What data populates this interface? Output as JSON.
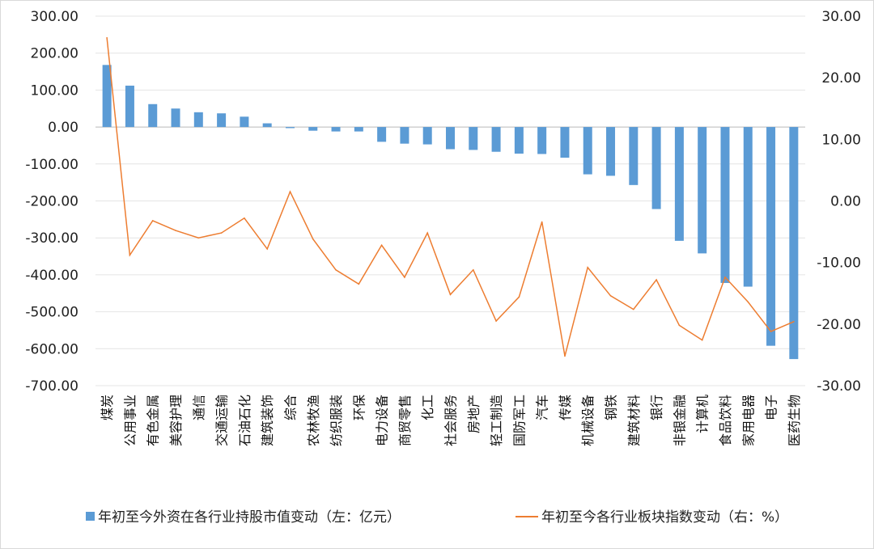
{
  "chart_data": {
    "type": "bar+line",
    "categories": [
      "煤炭",
      "公用事业",
      "有色金属",
      "美容护理",
      "通信",
      "交通运输",
      "石油石化",
      "建筑装饰",
      "综合",
      "农林牧渔",
      "纺织服装",
      "环保",
      "电力设备",
      "商贸零售",
      "化工",
      "社会服务",
      "房地产",
      "轻工制造",
      "国防军工",
      "汽车",
      "传媒",
      "机械设备",
      "钢铁",
      "建筑材料",
      "银行",
      "非银金融",
      "计算机",
      "食品饮料",
      "家用电器",
      "电子",
      "医药生物"
    ],
    "series": [
      {
        "name": "年初至今外资在各行业持股市值变动（左：亿元）",
        "type": "bar",
        "axis": "left",
        "color": "#5b9bd5",
        "values": [
          168,
          112,
          62,
          50,
          40,
          37,
          28,
          10,
          -3,
          -10,
          -12,
          -12,
          -40,
          -45,
          -47,
          -60,
          -62,
          -67,
          -72,
          -73,
          -83,
          -128,
          -132,
          -157,
          -222,
          -308,
          -342,
          -422,
          -432,
          -592,
          -628
        ]
      },
      {
        "name": "年初至今各行业板块指数变动（右：%）",
        "type": "line",
        "axis": "right",
        "color": "#ed7d31",
        "values": [
          26.5,
          -8.8,
          -3.2,
          -4.8,
          -6.0,
          -5.2,
          -2.8,
          -7.8,
          1.5,
          -6.2,
          -11.2,
          -13.5,
          -7.2,
          -12.4,
          -5.2,
          -15.2,
          -11.2,
          -19.5,
          -15.6,
          -3.4,
          -25.2,
          -10.8,
          -15.4,
          -17.6,
          -12.8,
          -20.2,
          -22.6,
          -12.4,
          -16.4,
          -21.2,
          -19.6
        ]
      }
    ],
    "ylim_left": [
      -700,
      300
    ],
    "yticks_left": [
      "300.00",
      "200.00",
      "100.00",
      "0.00",
      "-100.00",
      "-200.00",
      "-300.00",
      "-400.00",
      "-500.00",
      "-600.00",
      "-700.00"
    ],
    "ylim_right": [
      -30,
      30
    ],
    "yticks_right": [
      "30.00",
      "20.00",
      "10.00",
      "0.00",
      "-10.00",
      "-20.00",
      "-30.00"
    ],
    "grid": true,
    "legend_position": "bottom"
  }
}
